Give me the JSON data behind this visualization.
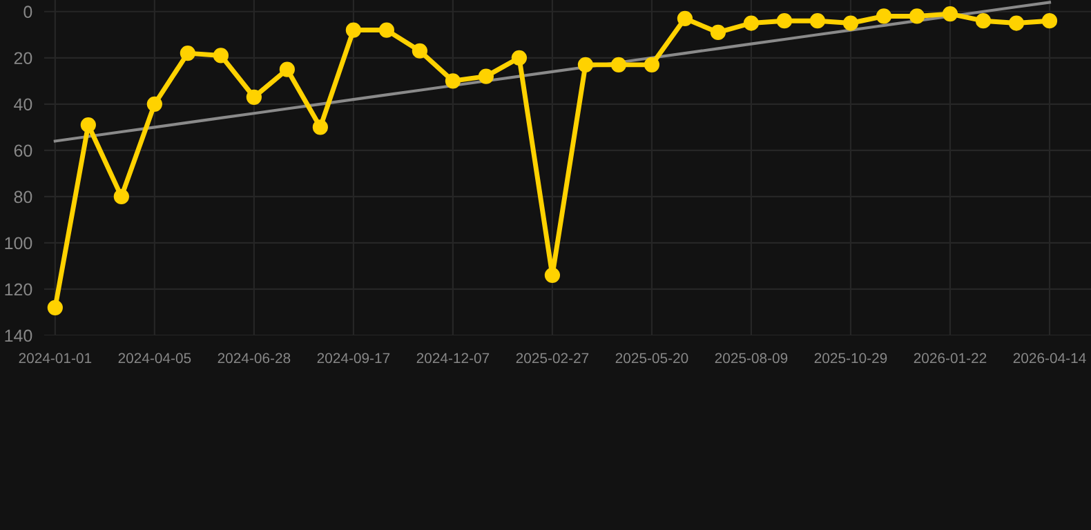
{
  "chart_data": {
    "type": "line",
    "categories": [
      "2024-01-01",
      null,
      null,
      "2024-04-05",
      null,
      null,
      "2024-06-28",
      null,
      null,
      "2024-09-17",
      null,
      null,
      "2024-12-07",
      null,
      null,
      "2025-02-27",
      null,
      null,
      "2025-05-20",
      null,
      null,
      "2025-08-09",
      null,
      null,
      "2025-10-29",
      null,
      null,
      "2026-01-22",
      null,
      null,
      "2026-04-14"
    ],
    "series": [
      {
        "color": "#ffd200",
        "values": [
          128,
          49,
          80,
          40,
          18,
          19,
          37,
          25,
          50,
          8,
          8,
          17,
          30,
          28,
          20,
          114,
          23,
          23,
          23,
          3,
          9,
          5,
          4,
          4,
          5,
          2,
          2,
          1,
          4,
          5,
          4
        ],
        "marker": "circle"
      },
      {
        "color": "#8a8a8a",
        "values": [
          56,
          54,
          52,
          50,
          48,
          46,
          44,
          42,
          40,
          38,
          36,
          34,
          32,
          30,
          28,
          26,
          24,
          22,
          20,
          18,
          16,
          14,
          12,
          10,
          8,
          6,
          4,
          2,
          0,
          -2,
          -4
        ],
        "marker": "none"
      }
    ],
    "ylim": [
      140,
      -5
    ],
    "yticks": [
      0,
      20,
      40,
      60,
      80,
      100,
      120,
      140
    ],
    "grid": true,
    "line_style": "solid"
  }
}
